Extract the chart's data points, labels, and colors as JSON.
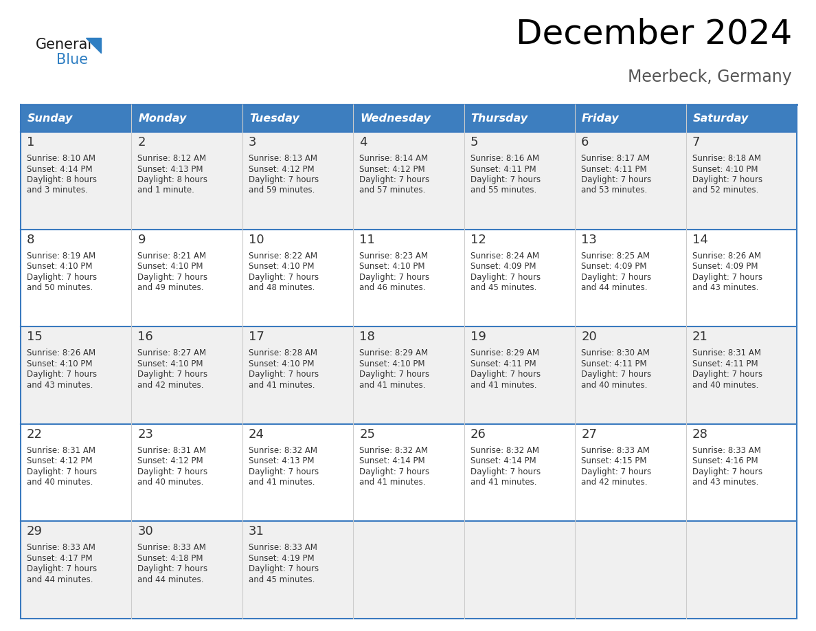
{
  "title": "December 2024",
  "subtitle": "Meerbeck, Germany",
  "header_color": "#3d7ebf",
  "header_text_color": "#ffffff",
  "row_bg_odd": "#f0f0f0",
  "row_bg_even": "#ffffff",
  "border_color": "#3a7abf",
  "text_color": "#333333",
  "logo_general_color": "#1a1a1a",
  "logo_blue_color": "#2e7ec2",
  "logo_triangle_color": "#2e7ec2",
  "day_headers": [
    "Sunday",
    "Monday",
    "Tuesday",
    "Wednesday",
    "Thursday",
    "Friday",
    "Saturday"
  ],
  "calendar": [
    [
      {
        "day": "1",
        "sunrise": "8:10 AM",
        "sunset": "4:14 PM",
        "daylight_h": "8 hours",
        "daylight_m": "and 3 minutes."
      },
      {
        "day": "2",
        "sunrise": "8:12 AM",
        "sunset": "4:13 PM",
        "daylight_h": "8 hours",
        "daylight_m": "and 1 minute."
      },
      {
        "day": "3",
        "sunrise": "8:13 AM",
        "sunset": "4:12 PM",
        "daylight_h": "7 hours",
        "daylight_m": "and 59 minutes."
      },
      {
        "day": "4",
        "sunrise": "8:14 AM",
        "sunset": "4:12 PM",
        "daylight_h": "7 hours",
        "daylight_m": "and 57 minutes."
      },
      {
        "day": "5",
        "sunrise": "8:16 AM",
        "sunset": "4:11 PM",
        "daylight_h": "7 hours",
        "daylight_m": "and 55 minutes."
      },
      {
        "day": "6",
        "sunrise": "8:17 AM",
        "sunset": "4:11 PM",
        "daylight_h": "7 hours",
        "daylight_m": "and 53 minutes."
      },
      {
        "day": "7",
        "sunrise": "8:18 AM",
        "sunset": "4:10 PM",
        "daylight_h": "7 hours",
        "daylight_m": "and 52 minutes."
      }
    ],
    [
      {
        "day": "8",
        "sunrise": "8:19 AM",
        "sunset": "4:10 PM",
        "daylight_h": "7 hours",
        "daylight_m": "and 50 minutes."
      },
      {
        "day": "9",
        "sunrise": "8:21 AM",
        "sunset": "4:10 PM",
        "daylight_h": "7 hours",
        "daylight_m": "and 49 minutes."
      },
      {
        "day": "10",
        "sunrise": "8:22 AM",
        "sunset": "4:10 PM",
        "daylight_h": "7 hours",
        "daylight_m": "and 48 minutes."
      },
      {
        "day": "11",
        "sunrise": "8:23 AM",
        "sunset": "4:10 PM",
        "daylight_h": "7 hours",
        "daylight_m": "and 46 minutes."
      },
      {
        "day": "12",
        "sunrise": "8:24 AM",
        "sunset": "4:09 PM",
        "daylight_h": "7 hours",
        "daylight_m": "and 45 minutes."
      },
      {
        "day": "13",
        "sunrise": "8:25 AM",
        "sunset": "4:09 PM",
        "daylight_h": "7 hours",
        "daylight_m": "and 44 minutes."
      },
      {
        "day": "14",
        "sunrise": "8:26 AM",
        "sunset": "4:09 PM",
        "daylight_h": "7 hours",
        "daylight_m": "and 43 minutes."
      }
    ],
    [
      {
        "day": "15",
        "sunrise": "8:26 AM",
        "sunset": "4:10 PM",
        "daylight_h": "7 hours",
        "daylight_m": "and 43 minutes."
      },
      {
        "day": "16",
        "sunrise": "8:27 AM",
        "sunset": "4:10 PM",
        "daylight_h": "7 hours",
        "daylight_m": "and 42 minutes."
      },
      {
        "day": "17",
        "sunrise": "8:28 AM",
        "sunset": "4:10 PM",
        "daylight_h": "7 hours",
        "daylight_m": "and 41 minutes."
      },
      {
        "day": "18",
        "sunrise": "8:29 AM",
        "sunset": "4:10 PM",
        "daylight_h": "7 hours",
        "daylight_m": "and 41 minutes."
      },
      {
        "day": "19",
        "sunrise": "8:29 AM",
        "sunset": "4:11 PM",
        "daylight_h": "7 hours",
        "daylight_m": "and 41 minutes."
      },
      {
        "day": "20",
        "sunrise": "8:30 AM",
        "sunset": "4:11 PM",
        "daylight_h": "7 hours",
        "daylight_m": "and 40 minutes."
      },
      {
        "day": "21",
        "sunrise": "8:31 AM",
        "sunset": "4:11 PM",
        "daylight_h": "7 hours",
        "daylight_m": "and 40 minutes."
      }
    ],
    [
      {
        "day": "22",
        "sunrise": "8:31 AM",
        "sunset": "4:12 PM",
        "daylight_h": "7 hours",
        "daylight_m": "and 40 minutes."
      },
      {
        "day": "23",
        "sunrise": "8:31 AM",
        "sunset": "4:12 PM",
        "daylight_h": "7 hours",
        "daylight_m": "and 40 minutes."
      },
      {
        "day": "24",
        "sunrise": "8:32 AM",
        "sunset": "4:13 PM",
        "daylight_h": "7 hours",
        "daylight_m": "and 41 minutes."
      },
      {
        "day": "25",
        "sunrise": "8:32 AM",
        "sunset": "4:14 PM",
        "daylight_h": "7 hours",
        "daylight_m": "and 41 minutes."
      },
      {
        "day": "26",
        "sunrise": "8:32 AM",
        "sunset": "4:14 PM",
        "daylight_h": "7 hours",
        "daylight_m": "and 41 minutes."
      },
      {
        "day": "27",
        "sunrise": "8:33 AM",
        "sunset": "4:15 PM",
        "daylight_h": "7 hours",
        "daylight_m": "and 42 minutes."
      },
      {
        "day": "28",
        "sunrise": "8:33 AM",
        "sunset": "4:16 PM",
        "daylight_h": "7 hours",
        "daylight_m": "and 43 minutes."
      }
    ],
    [
      {
        "day": "29",
        "sunrise": "8:33 AM",
        "sunset": "4:17 PM",
        "daylight_h": "7 hours",
        "daylight_m": "and 44 minutes."
      },
      {
        "day": "30",
        "sunrise": "8:33 AM",
        "sunset": "4:18 PM",
        "daylight_h": "7 hours",
        "daylight_m": "and 44 minutes."
      },
      {
        "day": "31",
        "sunrise": "8:33 AM",
        "sunset": "4:19 PM",
        "daylight_h": "7 hours",
        "daylight_m": "and 45 minutes."
      },
      null,
      null,
      null,
      null
    ]
  ]
}
